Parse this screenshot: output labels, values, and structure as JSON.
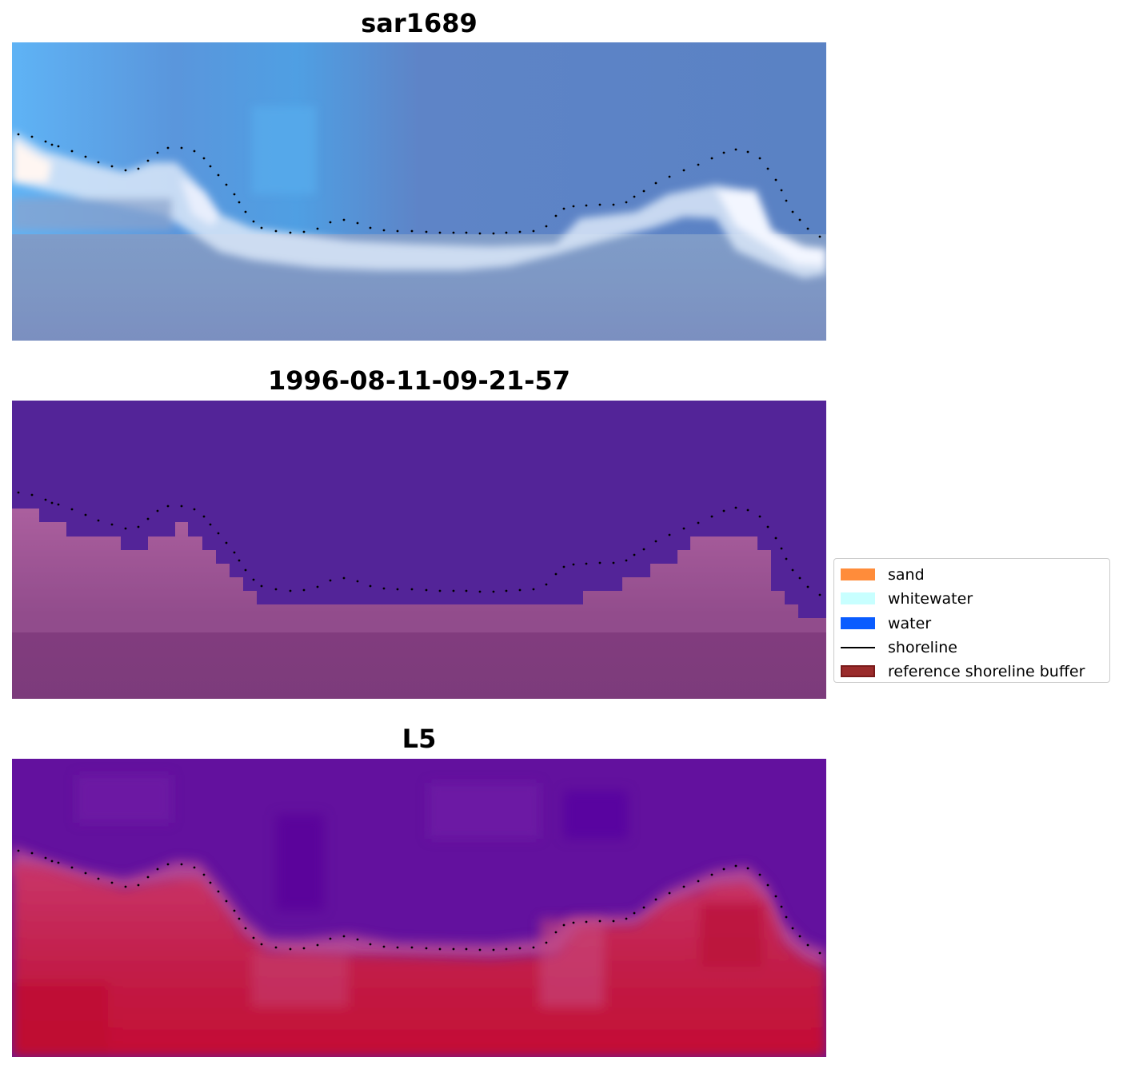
{
  "panels": [
    {
      "title": "sar1689",
      "kind": "rgb"
    },
    {
      "title": "1996-08-11-09-21-57",
      "kind": "classified"
    },
    {
      "title": "L5",
      "kind": "index"
    }
  ],
  "legend": {
    "items": [
      {
        "label": "sand",
        "type": "patch",
        "color": "#ff8c3a",
        "border": "#ff8c3a",
        "icon": "orange-patch"
      },
      {
        "label": "whitewater",
        "type": "patch",
        "color": "#c8ffff",
        "border": "#c8ffff",
        "icon": "cyan-patch"
      },
      {
        "label": "water",
        "type": "patch",
        "color": "#0a5cff",
        "border": "#0a5cff",
        "icon": "blue-patch"
      },
      {
        "label": "shoreline",
        "type": "line",
        "color": "#000000",
        "icon": "black-line"
      },
      {
        "label": "reference shoreline buffer",
        "type": "patch",
        "color": "#9a2b2b",
        "border": "#7a1a1a",
        "icon": "darkred-patch"
      }
    ]
  },
  "colors": {
    "water_region": "#532498",
    "land_region": "#8a3f84",
    "index_high": "#c0103a",
    "index_low": "#5f0ea3",
    "rgb_sky_top": "#5aaef0",
    "rgb_water": "#5b85c5",
    "rgb_surf": "#e6f0ff",
    "rgb_land": "#7994c0",
    "shoreline": "#000000"
  }
}
